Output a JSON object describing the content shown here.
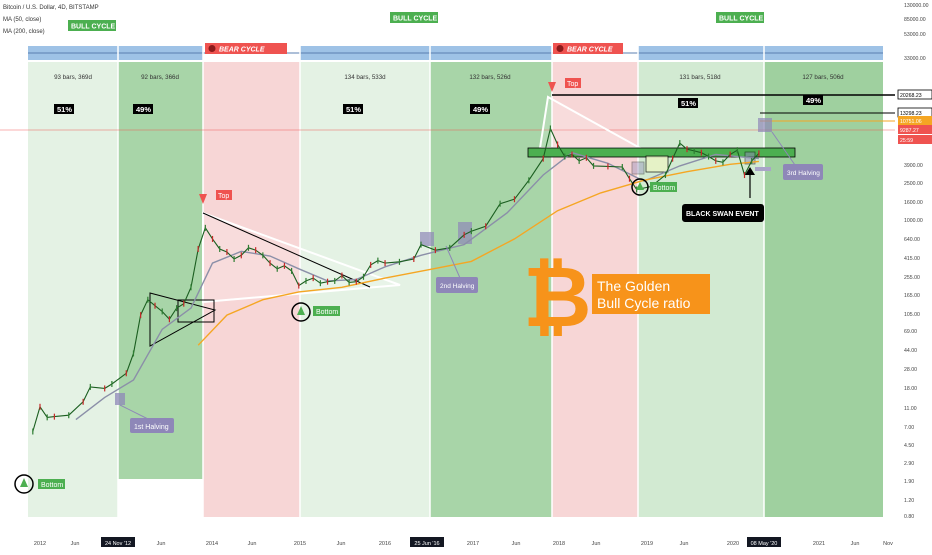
{
  "header": {
    "title": "Bitcoin / U.S. Dollar, 4D, BITSTAMP",
    "ma50": "MA (50, close)",
    "ma200": "MA (200, close)"
  },
  "chart_data": {
    "type": "line",
    "scale": "log",
    "title": "Bitcoin / U.S. Dollar, 4D, BITSTAMP",
    "x_ticks": [
      "2012",
      "Jun",
      "24 Nov '12",
      "Jun",
      "2014",
      "Jun",
      "2015",
      "Jun",
      "2016",
      "25 Jun '16",
      "2017",
      "Jun",
      "2018",
      "Jun",
      "2019",
      "Jun",
      "2020",
      "08 May '20",
      "2021",
      "Jun",
      "Nov"
    ],
    "y_ticks": [
      "130000.00",
      "85000.00",
      "53000.00",
      "33000.00",
      "20268.23",
      "13298.23",
      "10751.06",
      "9287.27",
      "25:59",
      "3900.00",
      "2500.00",
      "1600.00",
      "1000.00",
      "640.00",
      "415.00",
      "255.00",
      "165.00",
      "105.00",
      "69.00",
      "44.00",
      "28.00",
      "18.00",
      "11.00",
      "7.00",
      "4.50",
      "2.90",
      "1.90",
      "1.20",
      "0.80"
    ],
    "price_labels": [
      {
        "value": "20268.23",
        "color": "#000000"
      },
      {
        "value": "13298.23",
        "color": "#000000"
      },
      {
        "value": "10751.06",
        "color": "#ffffff"
      },
      {
        "value": "9287.27",
        "color": "#ef5350"
      },
      {
        "value": "25:59",
        "color": "#ef5350"
      }
    ],
    "cycles": [
      {
        "name": "BULL CYCLE",
        "bars": "93 bars, 369d",
        "percent": "51%"
      },
      {
        "name": "BULL CYCLE",
        "bars": "92 bars, 366d",
        "percent": "49%"
      },
      {
        "name": "BEAR CYCLE",
        "bars": "",
        "percent": ""
      },
      {
        "name": "BULL CYCLE",
        "bars": "134 bars, 533d",
        "percent": "51%"
      },
      {
        "name": "BULL CYCLE",
        "bars": "132 bars, 526d",
        "percent": "49%"
      },
      {
        "name": "BEAR CYCLE",
        "bars": "",
        "percent": ""
      },
      {
        "name": "BULL CYCLE",
        "bars": "131 bars, 518d",
        "percent": "51%"
      },
      {
        "name": "BULL CYCLE",
        "bars": "127 bars, 506d",
        "percent": "49%"
      }
    ],
    "cycle_labels": [
      "BULL CYCLE",
      "BEAR CYCLE",
      "BULL CYCLE",
      "BEAR CYCLE",
      "BULL CYCLE"
    ],
    "price_series": [
      {
        "date": "2011-12",
        "price": 3.2
      },
      {
        "date": "2012-01",
        "price": 6.5
      },
      {
        "date": "2012-02",
        "price": 4.8
      },
      {
        "date": "2012-03",
        "price": 4.9
      },
      {
        "date": "2012-05",
        "price": 5.1
      },
      {
        "date": "2012-07",
        "price": 7.5
      },
      {
        "date": "2012-08",
        "price": 11.5
      },
      {
        "date": "2012-10",
        "price": 11.0
      },
      {
        "date": "2012-11",
        "price": 12.5
      },
      {
        "date": "2013-01",
        "price": 17.0
      },
      {
        "date": "2013-02",
        "price": 30.0
      },
      {
        "date": "2013-03",
        "price": 90.0
      },
      {
        "date": "2013-04",
        "price": 140.0
      },
      {
        "date": "2013-05",
        "price": 118.0
      },
      {
        "date": "2013-06",
        "price": 100.0
      },
      {
        "date": "2013-07",
        "price": 80.0
      },
      {
        "date": "2013-08",
        "price": 110.0
      },
      {
        "date": "2013-09",
        "price": 125.0
      },
      {
        "date": "2013-10",
        "price": 200.0
      },
      {
        "date": "2013-11",
        "price": 600.0
      },
      {
        "date": "2013-12",
        "price": 1100.0
      },
      {
        "date": "2014-01",
        "price": 800.0
      },
      {
        "date": "2014-02",
        "price": 600.0
      },
      {
        "date": "2014-03",
        "price": 550.0
      },
      {
        "date": "2014-04",
        "price": 450.0
      },
      {
        "date": "2014-05",
        "price": 500.0
      },
      {
        "date": "2014-06",
        "price": 620.0
      },
      {
        "date": "2014-07",
        "price": 580.0
      },
      {
        "date": "2014-08",
        "price": 500.0
      },
      {
        "date": "2014-09",
        "price": 400.0
      },
      {
        "date": "2014-10",
        "price": 340.0
      },
      {
        "date": "2014-11",
        "price": 370.0
      },
      {
        "date": "2014-12",
        "price": 320.0
      },
      {
        "date": "2015-01",
        "price": 210.0
      },
      {
        "date": "2015-02",
        "price": 240.0
      },
      {
        "date": "2015-03",
        "price": 260.0
      },
      {
        "date": "2015-04",
        "price": 225.0
      },
      {
        "date": "2015-05",
        "price": 235.0
      },
      {
        "date": "2015-06",
        "price": 240.0
      },
      {
        "date": "2015-07",
        "price": 280.0
      },
      {
        "date": "2015-08",
        "price": 230.0
      },
      {
        "date": "2015-09",
        "price": 235.0
      },
      {
        "date": "2015-10",
        "price": 270.0
      },
      {
        "date": "2015-11",
        "price": 380.0
      },
      {
        "date": "2015-12",
        "price": 430.0
      },
      {
        "date": "2016-01",
        "price": 400.0
      },
      {
        "date": "2016-03",
        "price": 415.0
      },
      {
        "date": "2016-05",
        "price": 450.0
      },
      {
        "date": "2016-06",
        "price": 680.0
      },
      {
        "date": "2016-08",
        "price": 580.0
      },
      {
        "date": "2016-10",
        "price": 620.0
      },
      {
        "date": "2016-12",
        "price": 900.0
      },
      {
        "date": "2017-01",
        "price": 1000.0
      },
      {
        "date": "2017-03",
        "price": 1150.0
      },
      {
        "date": "2017-05",
        "price": 2200.0
      },
      {
        "date": "2017-07",
        "price": 2500.0
      },
      {
        "date": "2017-09",
        "price": 4300.0
      },
      {
        "date": "2017-11",
        "price": 8000.0
      },
      {
        "date": "2017-12",
        "price": 19000.0
      },
      {
        "date": "2018-01",
        "price": 12000.0
      },
      {
        "date": "2018-02",
        "price": 8500.0
      },
      {
        "date": "2018-03",
        "price": 9000.0
      },
      {
        "date": "2018-04",
        "price": 7500.0
      },
      {
        "date": "2018-05",
        "price": 8200.0
      },
      {
        "date": "2018-06",
        "price": 6500.0
      },
      {
        "date": "2018-08",
        "price": 6400.0
      },
      {
        "date": "2018-10",
        "price": 6300.0
      },
      {
        "date": "2018-11",
        "price": 4500.0
      },
      {
        "date": "2018-12",
        "price": 3300.0
      },
      {
        "date": "2019-02",
        "price": 3600.0
      },
      {
        "date": "2019-04",
        "price": 5000.0
      },
      {
        "date": "2019-05",
        "price": 8000.0
      },
      {
        "date": "2019-06",
        "price": 12500.0
      },
      {
        "date": "2019-07",
        "price": 10500.0
      },
      {
        "date": "2019-08",
        "price": 10000.0
      },
      {
        "date": "2019-09",
        "price": 9500.0
      },
      {
        "date": "2019-10",
        "price": 8500.0
      },
      {
        "date": "2019-11",
        "price": 7500.0
      },
      {
        "date": "2019-12",
        "price": 7200.0
      },
      {
        "date": "2020-01",
        "price": 9000.0
      },
      {
        "date": "2020-02",
        "price": 10200.0
      },
      {
        "date": "2020-03",
        "price": 5000.0
      },
      {
        "date": "2020-04",
        "price": 7500.0
      },
      {
        "date": "2020-05",
        "price": 9300.0
      }
    ],
    "ma_series": [
      {
        "name": "MA (50, close)",
        "color": "#8b8fa8",
        "points": [
          {
            "date": "2012-06",
            "price": 4.5
          },
          {
            "date": "2012-10",
            "price": 8.5
          },
          {
            "date": "2013-02",
            "price": 14.0
          },
          {
            "date": "2013-06",
            "price": 60.0
          },
          {
            "date": "2013-10",
            "price": 110.0
          },
          {
            "date": "2014-01",
            "price": 400.0
          },
          {
            "date": "2014-05",
            "price": 560.0
          },
          {
            "date": "2014-09",
            "price": 490.0
          },
          {
            "date": "2015-01",
            "price": 340.0
          },
          {
            "date": "2015-05",
            "price": 240.0
          },
          {
            "date": "2015-09",
            "price": 250.0
          },
          {
            "date": "2016-01",
            "price": 360.0
          },
          {
            "date": "2016-06",
            "price": 500.0
          },
          {
            "date": "2016-12",
            "price": 680.0
          },
          {
            "date": "2017-06",
            "price": 1700.0
          },
          {
            "date": "2017-11",
            "price": 5000.0
          },
          {
            "date": "2018-03",
            "price": 9500.0
          },
          {
            "date": "2018-08",
            "price": 7000.0
          },
          {
            "date": "2019-01",
            "price": 4200.0
          },
          {
            "date": "2019-06",
            "price": 6500.0
          },
          {
            "date": "2019-11",
            "price": 9000.0
          },
          {
            "date": "2020-05",
            "price": 8000.0
          }
        ]
      },
      {
        "name": "MA (200, close)",
        "color": "#f5a623",
        "points": [
          {
            "date": "2013-11",
            "price": 38.0
          },
          {
            "date": "2014-03",
            "price": 90.0
          },
          {
            "date": "2014-08",
            "price": 140.0
          },
          {
            "date": "2015-01",
            "price": 175.0
          },
          {
            "date": "2015-07",
            "price": 200.0
          },
          {
            "date": "2016-01",
            "price": 260.0
          },
          {
            "date": "2016-07",
            "price": 330.0
          },
          {
            "date": "2017-01",
            "price": 420.0
          },
          {
            "date": "2017-07",
            "price": 800.0
          },
          {
            "date": "2018-01",
            "price": 1800.0
          },
          {
            "date": "2018-07",
            "price": 3000.0
          },
          {
            "date": "2019-01",
            "price": 4300.0
          },
          {
            "date": "2019-07",
            "price": 5500.0
          },
          {
            "date": "2020-01",
            "price": 6800.0
          },
          {
            "date": "2020-05",
            "price": 7400.0
          }
        ]
      }
    ],
    "annotations": {
      "top": "Top",
      "bottom": "Bottom",
      "halving1": "1st Halving",
      "halving2": "2nd Halving",
      "halving3": "3rd Halving",
      "black_swan": "BLACK SWAN EVENT",
      "golden_line1": "The Golden",
      "golden_line2": "Bull Cycle ratio",
      "bitcoin_symbol": "₿"
    }
  }
}
